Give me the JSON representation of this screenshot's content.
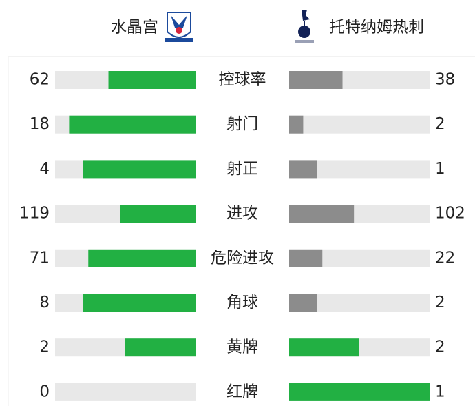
{
  "header": {
    "home": "水晶宫",
    "away": "托特纳姆热刺"
  },
  "stats": [
    {
      "label": "控球率",
      "home": 62,
      "away": 38
    },
    {
      "label": "射门",
      "home": 18,
      "away": 2
    },
    {
      "label": "射正",
      "home": 4,
      "away": 1
    },
    {
      "label": "进攻",
      "home": 119,
      "away": 102
    },
    {
      "label": "危险进攻",
      "home": 71,
      "away": 22
    },
    {
      "label": "角球",
      "home": 8,
      "away": 2
    },
    {
      "label": "黄牌",
      "home": 2,
      "away": 2
    },
    {
      "label": "红牌",
      "home": 0,
      "away": 1
    }
  ]
}
